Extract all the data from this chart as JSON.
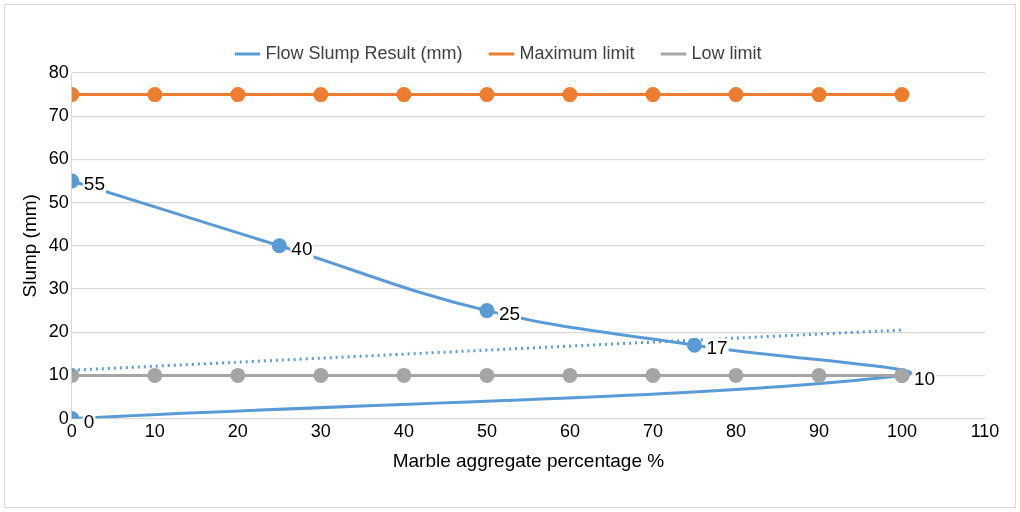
{
  "chart_data": {
    "type": "scatter",
    "xlabel": "Marble aggregate percentage %",
    "ylabel": "Slump (mm)",
    "series": [
      {
        "name": "Flow Slump Result (mm)",
        "type": "line",
        "color": "#5b9bd5",
        "x": [
          0,
          25,
          50,
          75,
          100,
          0
        ],
        "values": [
          55,
          40,
          25,
          17,
          10,
          0
        ],
        "value_labels": [
          "55",
          "40",
          "25",
          "17",
          "10",
          "0"
        ],
        "marker": "circle",
        "line_style": "solid"
      },
      {
        "name": "Maximum limit",
        "type": "line",
        "color": "#ed7d31",
        "x": [
          0,
          10,
          20,
          30,
          40,
          50,
          60,
          70,
          80,
          90,
          100
        ],
        "values": [
          75,
          75,
          75,
          75,
          75,
          75,
          75,
          75,
          75,
          75,
          75
        ],
        "marker": "circle",
        "line_style": "solid"
      },
      {
        "name": "Low limit",
        "type": "line",
        "color": "#a5a5a5",
        "x": [
          0,
          10,
          20,
          30,
          40,
          50,
          60,
          70,
          80,
          90,
          100
        ],
        "values": [
          10,
          10,
          10,
          10,
          10,
          10,
          10,
          10,
          10,
          10,
          10
        ],
        "marker": "circle",
        "line_style": "solid"
      },
      {
        "type": "line",
        "color": "#5b9bd5",
        "x": [
          0,
          100
        ],
        "values": [
          11.2,
          20.5
        ],
        "marker": "none",
        "line_style": "dotted"
      }
    ],
    "xlim": [
      0,
      110
    ],
    "xticks": [
      0,
      10,
      20,
      30,
      40,
      50,
      60,
      70,
      80,
      90,
      100,
      110
    ],
    "ylim": [
      0,
      80
    ],
    "yticks": [
      0,
      10,
      20,
      30,
      40,
      50,
      60,
      70,
      80
    ],
    "grid": "y",
    "legend": "top"
  }
}
